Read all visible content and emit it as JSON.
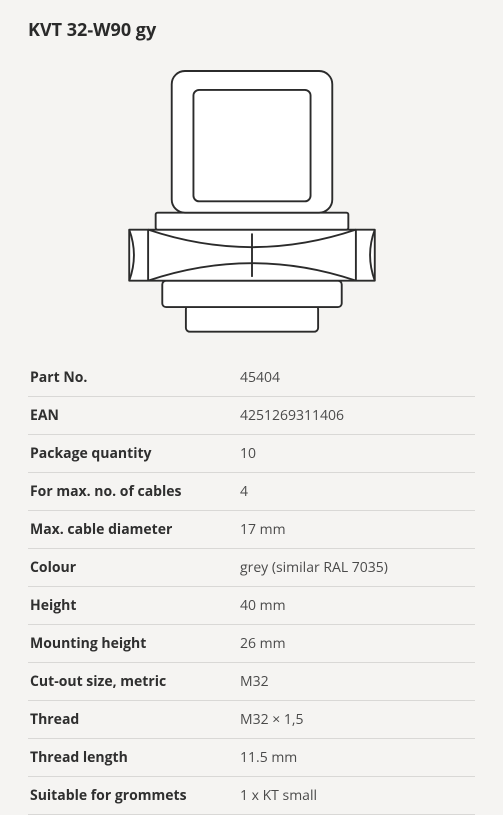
{
  "title": "KVT 32-W90 gy",
  "drawing": {
    "stroke": "#2b2b2b",
    "stroke_width": 2,
    "fill": "#ffffff",
    "viewbox_w": 360,
    "viewbox_h": 290
  },
  "specs": [
    {
      "label": "Part No.",
      "value": "45404"
    },
    {
      "label": "EAN",
      "value": "4251269311406"
    },
    {
      "label": "Package quantity",
      "value": "10"
    },
    {
      "label": "For max. no. of cables",
      "value": "4"
    },
    {
      "label": "Max. cable diameter",
      "value": "17 mm"
    },
    {
      "label": "Colour",
      "value": "grey (similar RAL 7035)"
    },
    {
      "label": "Height",
      "value": "40 mm"
    },
    {
      "label": "Mounting height",
      "value": "26 mm"
    },
    {
      "label": "Cut-out size, metric",
      "value": "M32"
    },
    {
      "label": "Thread",
      "value": "M32 × 1,5"
    },
    {
      "label": "Thread length",
      "value": "11.5 mm"
    },
    {
      "label": "Suitable for grommets",
      "value": "1 x KT small"
    }
  ]
}
